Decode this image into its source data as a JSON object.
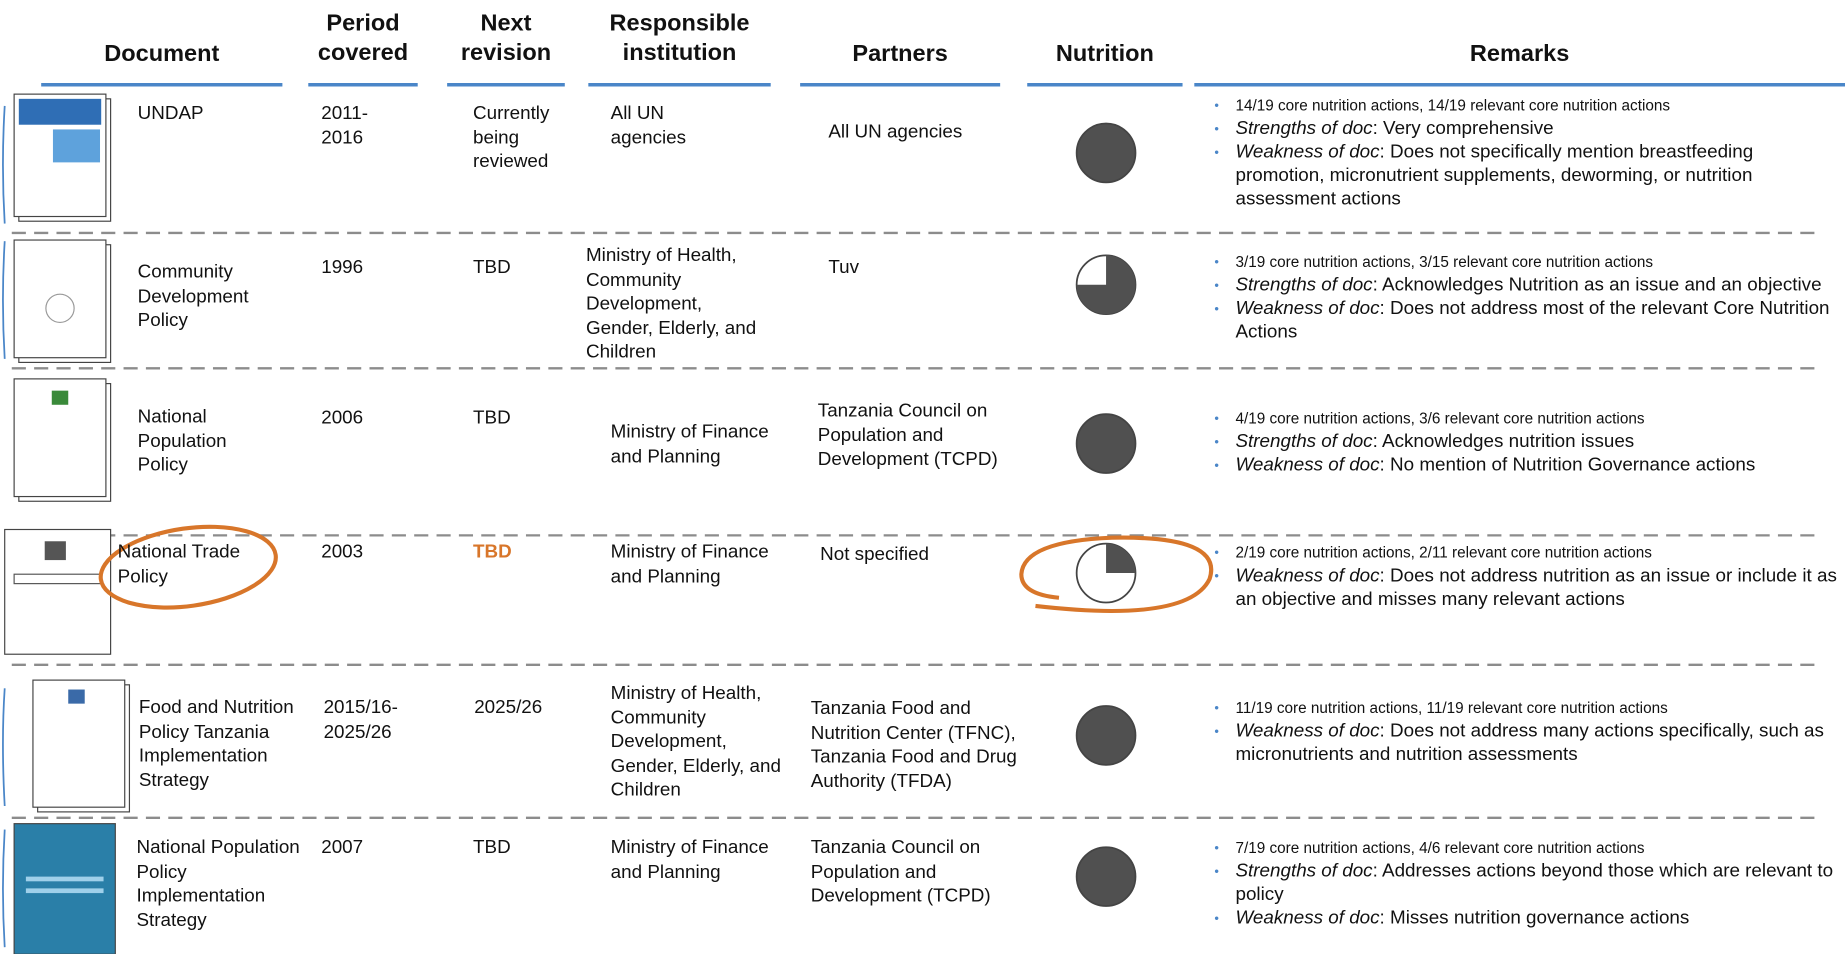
{
  "table": {
    "columns": [
      "Document",
      "Period covered",
      "Next revision",
      "Responsible institution",
      "Partners",
      "Nutrition",
      "Remarks"
    ],
    "rows": [
      {
        "document": "UNDAP",
        "period": "2011-2016",
        "next_revision": "Currently being reviewed",
        "responsible": "All UN agencies",
        "partners": "All UN agencies",
        "nutrition": 1,
        "remarks": [
          {
            "text": "14/19 core nutrition actions, 14/19 relevant core nutrition actions"
          },
          {
            "label": "Strengths of doc",
            "text": ": Very comprehensive"
          },
          {
            "label": "Weakness of doc",
            "text": ": Does not specifically mention breastfeeding promotion, micronutrient supplements, deworming, or nutrition assessment actions"
          }
        ]
      },
      {
        "document": "Community Development Policy",
        "period": "1996",
        "next_revision": "TBD",
        "responsible": "Ministry of Health, Community Development, Gender, Elderly, and Children",
        "partners": "Tuv",
        "nutrition": 0.75,
        "remarks": [
          {
            "text": "3/19 core nutrition actions, 3/15 relevant core nutrition actions"
          },
          {
            "label": "Strengths of doc",
            "text": ": Acknowledges Nutrition as an issue and an objective"
          },
          {
            "label": "Weakness of doc",
            "text": ": Does not address most of the relevant Core Nutrition Actions"
          }
        ]
      },
      {
        "document": "National Population Policy",
        "period": "2006",
        "next_revision": "TBD",
        "responsible": "Ministry of Finance and Planning",
        "partners": "Tanzania Council on Population and Development (TCPD)",
        "nutrition": 1,
        "remarks": [
          {
            "text": "4/19 core nutrition actions, 3/6 relevant core nutrition actions"
          },
          {
            "label": "Strengths of doc",
            "text": ": Acknowledges nutrition issues"
          },
          {
            "label": "Weakness of doc",
            "text": ": No mention of Nutrition Governance actions"
          }
        ]
      },
      {
        "document": "National Trade Policy",
        "period": "2003",
        "next_revision": "TBD",
        "responsible": "Ministry of Finance and Planning",
        "partners": "Not specified",
        "nutrition": 0.25,
        "remarks": [
          {
            "text": "2/19 core nutrition actions, 2/11 relevant core nutrition actions"
          },
          {
            "label": "Weakness of doc",
            "text": ": Does not address nutrition as an issue or include it as an objective and misses many relevant actions"
          }
        ]
      },
      {
        "document": "Food and Nutrition Policy Tanzania Implementation Strategy",
        "period": "2015/16-2025/26",
        "next_revision": "2025/26",
        "responsible": "Ministry of Health, Community Development, Gender, Elderly, and Children",
        "partners": "Tanzania Food and Nutrition Center (TFNC), Tanzania Food and Drug Authority (TFDA)",
        "nutrition": 1,
        "remarks": [
          {
            "text": "11/19 core nutrition actions, 11/19 relevant core nutrition actions"
          },
          {
            "label": "Weakness of doc",
            "text": ": Does not address many actions specifically, such as micronutrients and nutrition assessments"
          }
        ]
      },
      {
        "document": "National Population Policy Implementation Strategy",
        "period": "2007",
        "next_revision": "TBD",
        "responsible": "Ministry of Finance and Planning",
        "partners": "Tanzania Council on Population and Development (TCPD)",
        "nutrition": 1,
        "remarks": [
          {
            "text": "7/19 core nutrition actions, 4/6 relevant core nutrition actions"
          },
          {
            "label": "Strengths of doc",
            "text": ": Addresses actions beyond those which are relevant to policy"
          },
          {
            "label": "Weakness of doc",
            "text": ": Misses nutrition governance actions"
          }
        ]
      }
    ]
  }
}
